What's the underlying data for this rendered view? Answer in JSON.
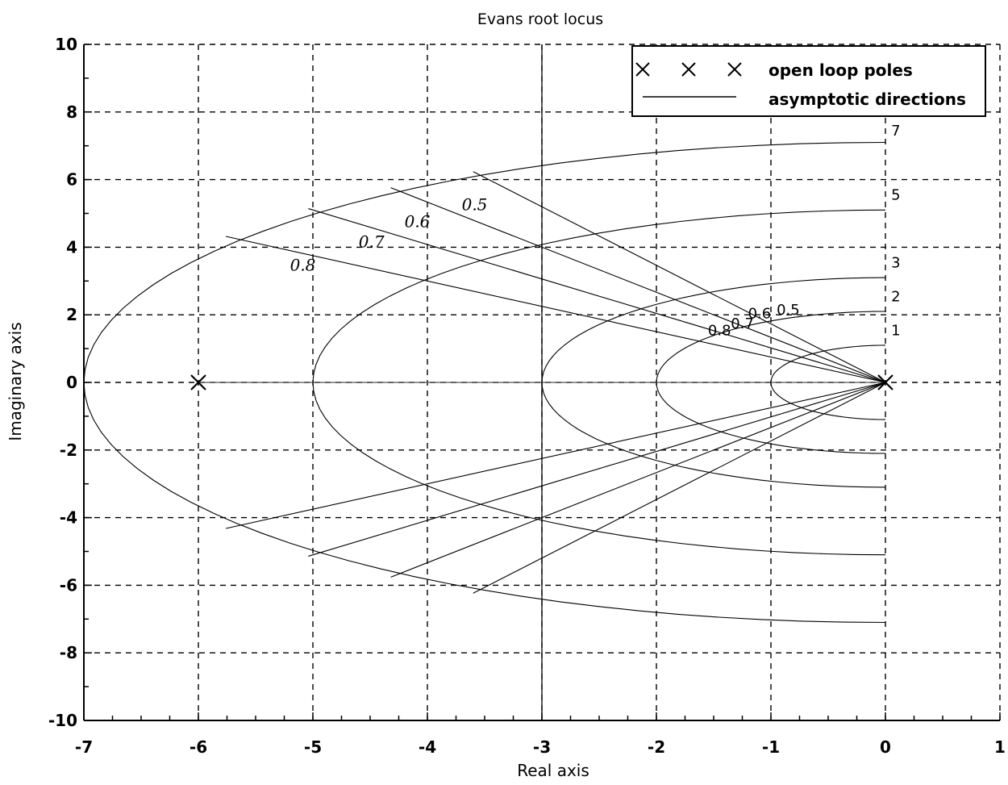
{
  "chart_data": {
    "type": "line",
    "title": "Evans root locus",
    "xlabel": "Real axis",
    "ylabel": "Imaginary axis",
    "xlim": [
      -7,
      1
    ],
    "ylim": [
      -10,
      10
    ],
    "x_ticks": [
      "-7",
      "-6",
      "-5",
      "-4",
      "-3",
      "-2",
      "-1",
      "0",
      "1"
    ],
    "y_ticks": [
      "10",
      "8",
      "6",
      "4",
      "2",
      "0",
      "-2",
      "-4",
      "-6",
      "-8",
      "-10"
    ],
    "grid": true,
    "grid_style": "dashed",
    "legend_position": "top-right",
    "legend": [
      {
        "label": "open loop poles",
        "marker": "x"
      },
      {
        "label": "asymptotic directions",
        "marker": "line"
      }
    ],
    "open_loop_poles": [
      {
        "x": -6,
        "y": 0
      },
      {
        "x": 0,
        "y": 0
      }
    ],
    "asymptote_x": -3,
    "natural_frequency_contours": [
      {
        "label": "7",
        "wn": 7,
        "label_x": 0.05,
        "label_y": 7.3
      },
      {
        "label": "5",
        "wn": 5,
        "label_x": 0.05,
        "label_y": 5.4
      },
      {
        "label": "3",
        "wn": 3,
        "label_x": 0.05,
        "label_y": 3.4
      },
      {
        "label": "2",
        "wn": 2,
        "label_x": 0.05,
        "label_y": 2.4
      },
      {
        "label": "1",
        "wn": 1,
        "label_x": 0.05,
        "label_y": 1.4
      }
    ],
    "damping_lines": [
      {
        "zeta": 0.5,
        "label": "0.5",
        "label_x": -3.7,
        "label_y": 5.1
      },
      {
        "zeta": 0.6,
        "label": "0.6",
        "label_x": -4.2,
        "label_y": 4.6
      },
      {
        "zeta": 0.7,
        "label": "0.7",
        "label_x": -4.6,
        "label_y": 4.0
      },
      {
        "zeta": 0.8,
        "label": "0.8",
        "label_x": -5.2,
        "label_y": 3.3
      }
    ],
    "damping_labels_small": [
      {
        "label": "0.5",
        "x": -0.95,
        "y": 2.0
      },
      {
        "label": "0.6",
        "x": -1.2,
        "y": 1.9
      },
      {
        "label": "0.7",
        "x": -1.35,
        "y": 1.6
      },
      {
        "label": "0.8",
        "x": -1.55,
        "y": 1.4
      }
    ]
  }
}
